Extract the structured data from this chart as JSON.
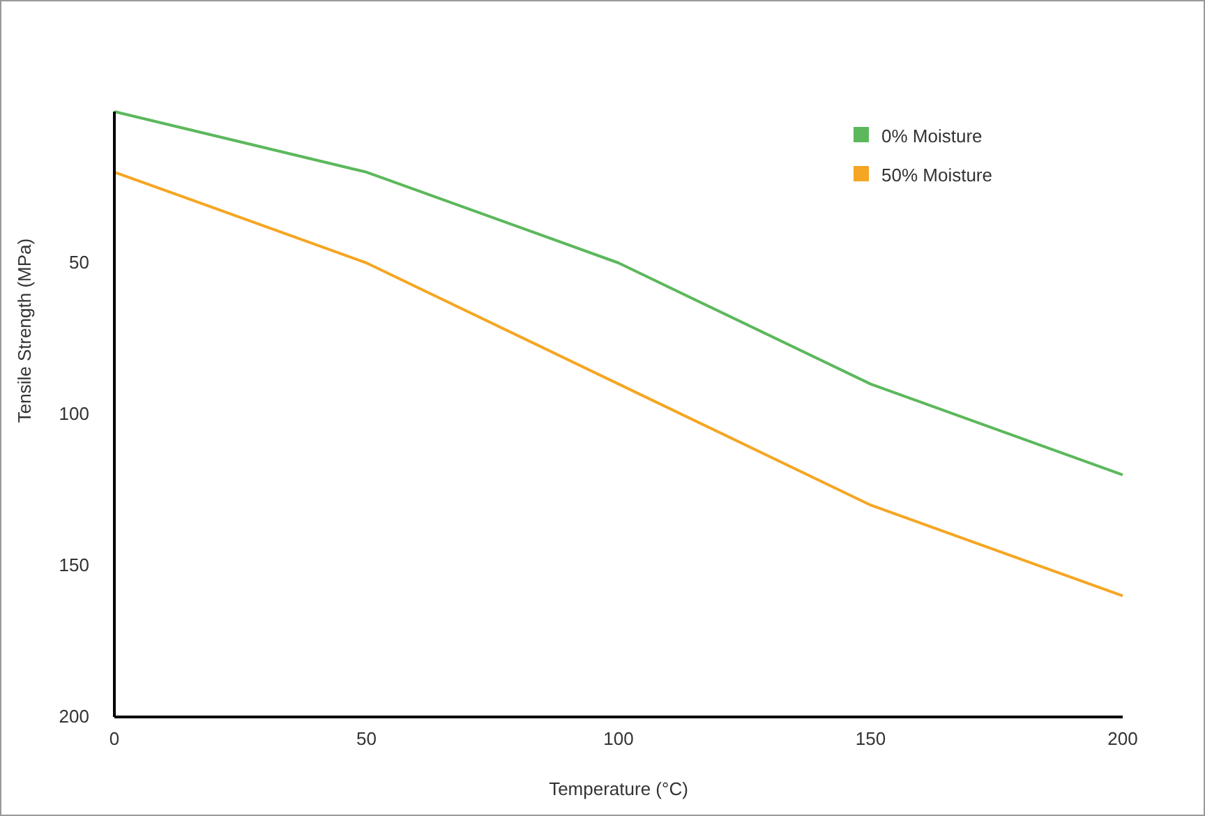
{
  "chart_data": {
    "type": "line",
    "xlabel": "Temperature (°C)",
    "ylabel": "Tensile Strength (MPa)",
    "x": [
      0,
      50,
      100,
      150,
      200
    ],
    "xlim": [
      0,
      200
    ],
    "xticks": [
      0,
      50,
      100,
      150,
      200
    ],
    "ylim": [
      200,
      0
    ],
    "yticks": [
      50,
      100,
      150,
      200
    ],
    "legend": "top right",
    "grid": false,
    "marker": "none",
    "line_style": "solid",
    "series": [
      {
        "name": "0% Moisture",
        "color": "#5cb85c",
        "values": [
          0,
          20,
          50,
          90,
          120
        ]
      },
      {
        "name": "50% Moisture",
        "color": "#f5a623",
        "values": [
          20,
          50,
          90,
          130,
          160
        ]
      }
    ]
  }
}
